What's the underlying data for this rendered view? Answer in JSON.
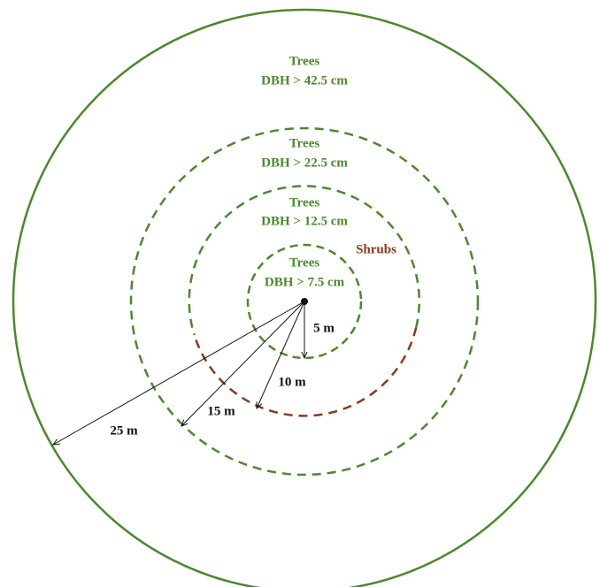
{
  "zones": [
    {
      "title": "Trees",
      "criterion": "DBH > 42.5 cm"
    },
    {
      "title": "Trees",
      "criterion": "DBH > 22.5 cm"
    },
    {
      "title": "Trees",
      "criterion": "DBH > 12.5 cm"
    },
    {
      "title": "Trees",
      "criterion": "DBH > 7.5 cm"
    }
  ],
  "shrubs_label": "Shrubs",
  "radius_labels": [
    "5 m",
    "10 m",
    "15 m",
    "25 m"
  ]
}
